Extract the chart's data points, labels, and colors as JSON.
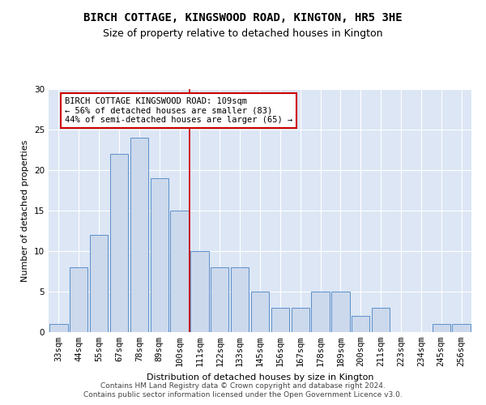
{
  "title": "BIRCH COTTAGE, KINGSWOOD ROAD, KINGTON, HR5 3HE",
  "subtitle": "Size of property relative to detached houses in Kington",
  "xlabel": "Distribution of detached houses by size in Kington",
  "ylabel": "Number of detached properties",
  "bar_color": "#ccd9ec",
  "bar_edge_color": "#5b8fc9",
  "background_color": "#dce6f5",
  "categories": [
    "33sqm",
    "44sqm",
    "55sqm",
    "67sqm",
    "78sqm",
    "89sqm",
    "100sqm",
    "111sqm",
    "122sqm",
    "133sqm",
    "145sqm",
    "156sqm",
    "167sqm",
    "178sqm",
    "189sqm",
    "200sqm",
    "211sqm",
    "223sqm",
    "234sqm",
    "245sqm",
    "256sqm"
  ],
  "values": [
    1,
    8,
    12,
    22,
    24,
    19,
    15,
    10,
    8,
    8,
    5,
    3,
    3,
    5,
    5,
    2,
    3,
    0,
    0,
    1,
    1
  ],
  "ylim": [
    0,
    30
  ],
  "yticks": [
    0,
    5,
    10,
    15,
    20,
    25,
    30
  ],
  "annotation_text": "BIRCH COTTAGE KINGSWOOD ROAD: 109sqm\n← 56% of detached houses are smaller (83)\n44% of semi-detached houses are larger (65) →",
  "footer1": "Contains HM Land Registry data © Crown copyright and database right 2024.",
  "footer2": "Contains public sector information licensed under the Open Government Licence v3.0.",
  "grid_color": "#ffffff",
  "vline_color": "#cc0000",
  "annotation_box_color": "#cc0000",
  "title_fontsize": 10,
  "subtitle_fontsize": 9,
  "label_fontsize": 8,
  "tick_fontsize": 7.5,
  "annotation_fontsize": 7.5,
  "footer_fontsize": 6.5,
  "vline_bar_index": 6
}
